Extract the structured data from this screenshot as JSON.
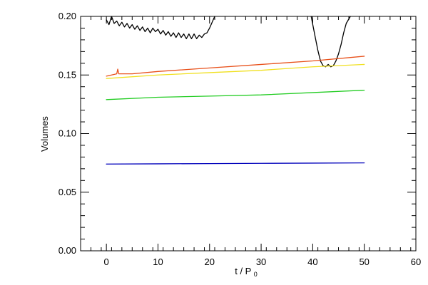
{
  "chart_data": {
    "type": "line",
    "title": "",
    "xlabel": "t / P",
    "xlabel_subscript": "0",
    "ylabel": "Volumes",
    "xlim": [
      -5,
      60
    ],
    "ylim": [
      0.0,
      0.2
    ],
    "x_ticks": [
      0,
      10,
      20,
      30,
      40,
      50,
      60
    ],
    "x_tick_labels": [
      "0",
      "10",
      "20",
      "30",
      "40",
      "50",
      "60"
    ],
    "y_ticks": [
      0.0,
      0.05,
      0.1,
      0.15,
      0.2
    ],
    "y_tick_labels": [
      "0.00",
      "0.05",
      "0.10",
      "0.15",
      "0.20"
    ],
    "grid": false,
    "legend": "none",
    "series": [
      {
        "color": "#000000",
        "x": [
          0,
          0.5,
          1,
          1.5,
          2,
          2.5,
          3,
          3.5,
          4,
          4.5,
          5,
          5.5,
          6,
          6.5,
          7,
          7.5,
          8,
          8.5,
          9,
          9.5,
          10,
          10.5,
          11,
          11.5,
          12,
          12.5,
          13,
          13.5,
          14,
          14.5,
          15,
          15.5,
          16,
          16.5,
          17,
          17.5,
          18,
          18.5,
          19,
          19.5,
          20,
          20.5,
          21
        ],
        "values": [
          0.197,
          0.193,
          0.2,
          0.194,
          0.196,
          0.192,
          0.195,
          0.191,
          0.194,
          0.19,
          0.193,
          0.189,
          0.192,
          0.188,
          0.191,
          0.187,
          0.19,
          0.186,
          0.19,
          0.187,
          0.189,
          0.185,
          0.188,
          0.184,
          0.187,
          0.183,
          0.186,
          0.182,
          0.186,
          0.182,
          0.185,
          0.181,
          0.185,
          0.181,
          0.185,
          0.181,
          0.184,
          0.182,
          0.185,
          0.186,
          0.19,
          0.195,
          0.2
        ]
      },
      {
        "color": "#000000",
        "x": [
          39.7,
          40.5,
          41,
          41.5,
          42,
          42.5,
          43,
          43.5,
          44,
          44.5,
          45,
          45.5,
          46,
          46.5,
          47.3
        ],
        "values": [
          0.2,
          0.182,
          0.171,
          0.162,
          0.158,
          0.157,
          0.159,
          0.157,
          0.158,
          0.162,
          0.168,
          0.176,
          0.186,
          0.194,
          0.2
        ]
      },
      {
        "color": "#e8501a",
        "x": [
          0,
          2,
          2.2,
          2.4,
          5,
          10,
          20,
          30,
          40,
          50
        ],
        "values": [
          0.149,
          0.151,
          0.155,
          0.151,
          0.151,
          0.153,
          0.156,
          0.159,
          0.162,
          0.166
        ]
      },
      {
        "color": "#f0e020",
        "x": [
          0,
          10,
          20,
          30,
          40,
          50
        ],
        "values": [
          0.147,
          0.15,
          0.152,
          0.154,
          0.157,
          0.159
        ]
      },
      {
        "color": "#22cc22",
        "x": [
          0,
          10,
          20,
          30,
          40,
          50
        ],
        "values": [
          0.129,
          0.131,
          0.132,
          0.133,
          0.135,
          0.137
        ]
      },
      {
        "color": "#0000bb",
        "x": [
          0,
          10,
          20,
          30,
          40,
          50
        ],
        "values": [
          0.074,
          0.0742,
          0.0744,
          0.0746,
          0.0748,
          0.075
        ]
      }
    ]
  }
}
